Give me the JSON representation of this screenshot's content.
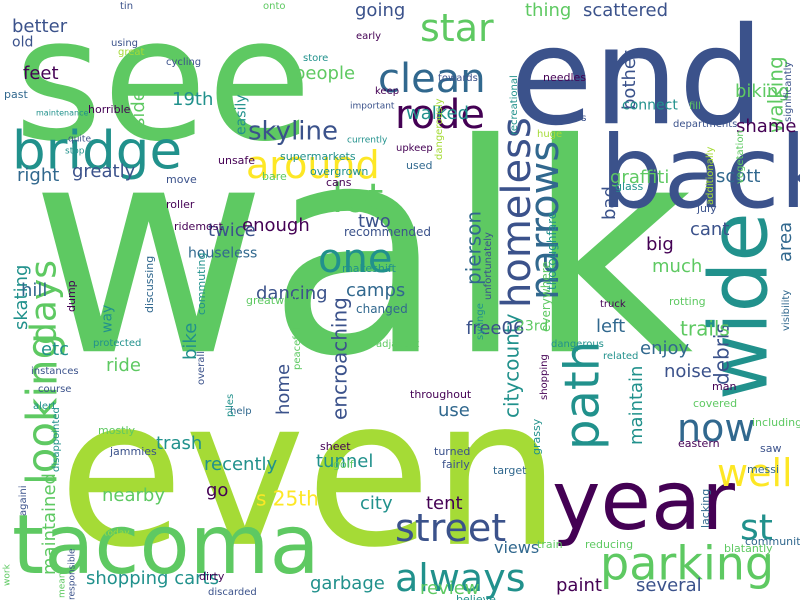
{
  "wordcloud": {
    "words": [
      {
        "text": "walk",
        "color": "#5ec962"
      },
      {
        "text": "even",
        "color": "#a5db36"
      },
      {
        "text": "see",
        "color": "#5ec962"
      },
      {
        "text": "end",
        "color": "#3b528b"
      },
      {
        "text": "back",
        "color": "#3b528b"
      },
      {
        "text": "tacoma",
        "color": "#5ec962"
      },
      {
        "text": "year",
        "color": "#440154"
      },
      {
        "text": "wide",
        "color": "#21918c"
      },
      {
        "text": "bridge",
        "color": "#21918c"
      },
      {
        "text": "parking",
        "color": "#5ec962"
      },
      {
        "text": "looking",
        "color": "#5ec962"
      },
      {
        "text": "homeless",
        "color": "#3b528b"
      },
      {
        "text": "path",
        "color": "#21918c"
      },
      {
        "text": "narrows",
        "color": "#31688e"
      },
      {
        "text": "clean",
        "color": "#31688e"
      },
      {
        "text": "street",
        "color": "#3b528b"
      },
      {
        "text": "always",
        "color": "#21918c"
      },
      {
        "text": "around",
        "color": "#fde725"
      },
      {
        "text": "lot",
        "color": "#5ec962"
      },
      {
        "text": "one",
        "color": "#21918c"
      },
      {
        "text": "rode",
        "color": "#440154"
      },
      {
        "text": "star",
        "color": "#5ec962"
      },
      {
        "text": "well",
        "color": "#fde725"
      },
      {
        "text": "now",
        "color": "#31688e"
      },
      {
        "text": "days",
        "color": "#5ec962"
      },
      {
        "text": "st",
        "color": "#21918c"
      },
      {
        "text": "shopping carts",
        "color": "#21918c"
      },
      {
        "text": "skyline",
        "color": "#3b528b"
      },
      {
        "text": "encroaching",
        "color": "#3b528b"
      },
      {
        "text": "citycounty",
        "color": "#21918c"
      },
      {
        "text": "pierson",
        "color": "#31688e"
      },
      {
        "text": "walking",
        "color": "#5ec962"
      },
      {
        "text": "debris",
        "color": "#3b528b"
      },
      {
        "text": "trails",
        "color": "#5ec962"
      },
      {
        "text": "s 25th",
        "color": "#fde725"
      },
      {
        "text": "maintained",
        "color": "#5ec962"
      },
      {
        "text": "maintain",
        "color": "#21918c"
      },
      {
        "text": "camps",
        "color": "#31688e"
      },
      {
        "text": "enjoy",
        "color": "#31688e"
      },
      {
        "text": "tunnel",
        "color": "#21918c"
      },
      {
        "text": "trash",
        "color": "#21918c"
      },
      {
        "text": "skating",
        "color": "#21918c"
      },
      {
        "text": "review",
        "color": "#5ec962"
      },
      {
        "text": "several",
        "color": "#3b528b"
      },
      {
        "text": "garbage",
        "color": "#21918c"
      },
      {
        "text": "scott",
        "color": "#31688e"
      },
      {
        "text": "greatly",
        "color": "#3b528b"
      },
      {
        "text": "right",
        "color": "#31688e"
      },
      {
        "text": "people",
        "color": "#5ec962"
      },
      {
        "text": "feet",
        "color": "#440154"
      },
      {
        "text": "19th",
        "color": "#21918c"
      },
      {
        "text": "walked",
        "color": "#21918c"
      },
      {
        "text": "scattered",
        "color": "#3b528b"
      },
      {
        "text": "thing",
        "color": "#5ec962"
      },
      {
        "text": "going",
        "color": "#3b528b"
      },
      {
        "text": "shame",
        "color": "#440154"
      },
      {
        "text": "biking",
        "color": "#5ec962"
      },
      {
        "text": "graffiti",
        "color": "#5ec962"
      },
      {
        "text": "bother",
        "color": "#3b528b"
      },
      {
        "text": "bad",
        "color": "#3b528b"
      },
      {
        "text": "two",
        "color": "#3b528b"
      },
      {
        "text": "enough",
        "color": "#440154"
      },
      {
        "text": "twice",
        "color": "#3b528b"
      },
      {
        "text": "big",
        "color": "#440154"
      },
      {
        "text": "cant",
        "color": "#3b528b"
      },
      {
        "text": "much",
        "color": "#5ec962"
      },
      {
        "text": "area",
        "color": "#31688e"
      },
      {
        "text": "home",
        "color": "#3b528b"
      },
      {
        "text": "dancing",
        "color": "#3b528b"
      },
      {
        "text": "bike",
        "color": "#21918c"
      },
      {
        "text": "side",
        "color": "#5ec962"
      },
      {
        "text": "ride",
        "color": "#5ec962"
      },
      {
        "text": "etc",
        "color": "#21918c"
      },
      {
        "text": "hill",
        "color": "#31688e"
      },
      {
        "text": "go",
        "color": "#440154"
      },
      {
        "text": "city",
        "color": "#21918c"
      },
      {
        "text": "tent",
        "color": "#440154"
      },
      {
        "text": "free06",
        "color": "#3b528b"
      },
      {
        "text": "noise",
        "color": "#3b528b"
      },
      {
        "text": "left",
        "color": "#31688e"
      },
      {
        "text": "use",
        "color": "#31688e"
      },
      {
        "text": "nearby",
        "color": "#5ec962"
      },
      {
        "text": "recently",
        "color": "#21918c"
      },
      {
        "text": "paint",
        "color": "#440154"
      },
      {
        "text": "views",
        "color": "#31688e"
      },
      {
        "text": "better",
        "color": "#3b528b"
      },
      {
        "text": "old",
        "color": "#3b528b"
      },
      {
        "text": "way",
        "color": "#21918c"
      },
      {
        "text": "easily",
        "color": "#21918c"
      },
      {
        "text": "connect",
        "color": "#21918c"
      },
      {
        "text": "houseless",
        "color": "#31688e"
      },
      {
        "text": "23rd",
        "color": "#5ec962"
      },
      {
        "text": "changed",
        "color": "#31688e"
      },
      {
        "text": "recommended",
        "color": "#3b528b"
      },
      {
        "text": "ridemost",
        "color": "#440154"
      },
      {
        "text": "makeshift",
        "color": "#21918c"
      },
      {
        "text": "unfortunately",
        "color": "#3b528b"
      },
      {
        "text": "thoroughfare",
        "color": "#21918c"
      },
      {
        "text": "everywhere",
        "color": "#5ec962"
      },
      {
        "text": "syringe",
        "color": "#21918c"
      },
      {
        "text": "supermarkets",
        "color": "#21918c"
      },
      {
        "text": "overgrown",
        "color": "#21918c"
      },
      {
        "text": "cans",
        "color": "#440154"
      },
      {
        "text": "bare",
        "color": "#5ec962"
      },
      {
        "text": "unsafe",
        "color": "#440154"
      },
      {
        "text": "move",
        "color": "#3b528b"
      },
      {
        "text": "roller",
        "color": "#440154"
      },
      {
        "text": "dump",
        "color": "#440154"
      },
      {
        "text": "discussing",
        "color": "#31688e"
      },
      {
        "text": "commuting",
        "color": "#21918c"
      },
      {
        "text": "greatwell",
        "color": "#5ec962"
      },
      {
        "text": "protected",
        "color": "#21918c"
      },
      {
        "text": "overall",
        "color": "#3b528b"
      },
      {
        "text": "peaceful",
        "color": "#5ec962"
      },
      {
        "text": "instances",
        "color": "#3b528b"
      },
      {
        "text": "course",
        "color": "#3b528b"
      },
      {
        "text": "alert",
        "color": "#21918c"
      },
      {
        "text": "help",
        "color": "#31688e"
      },
      {
        "text": "piles",
        "color": "#21918c"
      },
      {
        "text": "mostly",
        "color": "#5ec962"
      },
      {
        "text": "jammies",
        "color": "#3b528b"
      },
      {
        "text": "sheet",
        "color": "#440154"
      },
      {
        "text": "golf",
        "color": "#5ec962"
      },
      {
        "text": "turned",
        "color": "#3b528b"
      },
      {
        "text": "fairly",
        "color": "#3b528b"
      },
      {
        "text": "target",
        "color": "#31688e"
      },
      {
        "text": "grassy",
        "color": "#21918c"
      },
      {
        "text": "throughout",
        "color": "#440154"
      },
      {
        "text": "shopping",
        "color": "#440154"
      },
      {
        "text": "dangerous",
        "color": "#21918c"
      },
      {
        "text": "adjacent",
        "color": "#5ec962"
      },
      {
        "text": "related",
        "color": "#21918c"
      },
      {
        "text": "truck",
        "color": "#440154"
      },
      {
        "text": "man",
        "color": "#440154"
      },
      {
        "text": "covered",
        "color": "#5ec962"
      },
      {
        "text": "eastern",
        "color": "#440154"
      },
      {
        "text": "including",
        "color": "#5ec962"
      },
      {
        "text": "saw",
        "color": "#3b528b"
      },
      {
        "text": "messi",
        "color": "#31688e"
      },
      {
        "text": "lacking",
        "color": "#31688e"
      },
      {
        "text": "blatantly",
        "color": "#5ec962"
      },
      {
        "text": "communitynext",
        "color": "#31688e"
      },
      {
        "text": "reducing",
        "color": "#5ec962"
      },
      {
        "text": "train",
        "color": "#5ec962"
      },
      {
        "text": "property",
        "color": "#3b528b"
      },
      {
        "text": "believe",
        "color": "#21918c"
      },
      {
        "text": "dirty",
        "color": "#440154"
      },
      {
        "text": "discarded",
        "color": "#3b528b"
      },
      {
        "text": "means",
        "color": "#5ec962"
      },
      {
        "text": "responsible",
        "color": "#3b528b"
      },
      {
        "text": "work",
        "color": "#5ec962"
      },
      {
        "text": "today",
        "color": "#a5db36"
      },
      {
        "text": "againi",
        "color": "#3b528b"
      },
      {
        "text": "disappointed",
        "color": "#21918c"
      },
      {
        "text": "rotting",
        "color": "#5ec962"
      },
      {
        "text": "july",
        "color": "#3b528b"
      },
      {
        "text": "glass",
        "color": "#21918c"
      },
      {
        "text": "vegetation",
        "color": "#5ec962"
      },
      {
        "text": "additionally",
        "color": "#a5db36"
      },
      {
        "text": "visibility",
        "color": "#31688e"
      },
      {
        "text": "significantly",
        "color": "#3b528b"
      },
      {
        "text": "departments",
        "color": "#3b528b"
      },
      {
        "text": "fill",
        "color": "#5ec962"
      },
      {
        "text": "huge",
        "color": "#a5db36"
      },
      {
        "text": "appears",
        "color": "#3b528b"
      },
      {
        "text": "needles",
        "color": "#440154"
      },
      {
        "text": "recreational",
        "color": "#21918c"
      },
      {
        "text": "towards",
        "color": "#3b528b"
      },
      {
        "text": "dangerously",
        "color": "#a5db36"
      },
      {
        "text": "upkeep",
        "color": "#440154"
      },
      {
        "text": "used",
        "color": "#31688e"
      },
      {
        "text": "currently",
        "color": "#21918c"
      },
      {
        "text": "important",
        "color": "#3b528b"
      },
      {
        "text": "keep",
        "color": "#440154"
      },
      {
        "text": "early",
        "color": "#440154"
      },
      {
        "text": "store",
        "color": "#21918c"
      },
      {
        "text": "onto",
        "color": "#5ec962"
      },
      {
        "text": "cycling",
        "color": "#3b528b"
      },
      {
        "text": "tin",
        "color": "#3b528b"
      },
      {
        "text": "great",
        "color": "#a5db36"
      },
      {
        "text": "using",
        "color": "#3b528b"
      },
      {
        "text": "horrible",
        "color": "#440154"
      },
      {
        "text": "past",
        "color": "#31688e"
      },
      {
        "text": "maintenance",
        "color": "#21918c"
      },
      {
        "text": "quite",
        "color": "#3b528b"
      },
      {
        "text": "stop",
        "color": "#21918c"
      }
    ]
  }
}
